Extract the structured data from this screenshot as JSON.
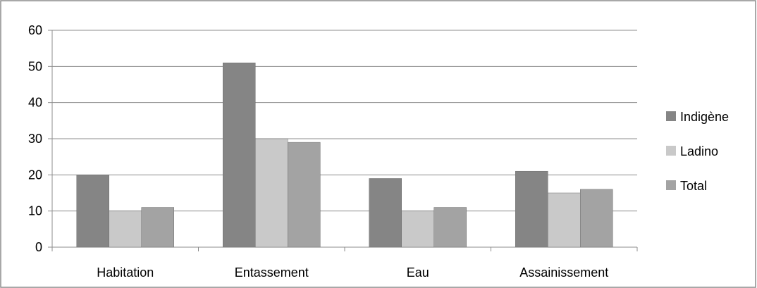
{
  "chart_data": {
    "type": "bar",
    "categories": [
      "Habitation",
      "Entassement",
      "Eau",
      "Assainissement"
    ],
    "series": [
      {
        "name": "Indigène",
        "values": [
          20,
          51,
          19,
          21
        ],
        "color": "#858585"
      },
      {
        "name": "Ladino",
        "values": [
          10,
          30,
          10,
          15
        ],
        "color": "#c9c9c9"
      },
      {
        "name": "Total",
        "values": [
          11,
          29,
          11,
          16
        ],
        "color": "#a3a3a3"
      }
    ],
    "ylim": [
      0,
      60
    ],
    "yticks": [
      "0",
      "10",
      "20",
      "30",
      "40",
      "50",
      "60"
    ],
    "grid": true,
    "legend_position": "right",
    "gridline_color": "#8c8c8c",
    "border_color": "#8c8c8c"
  }
}
